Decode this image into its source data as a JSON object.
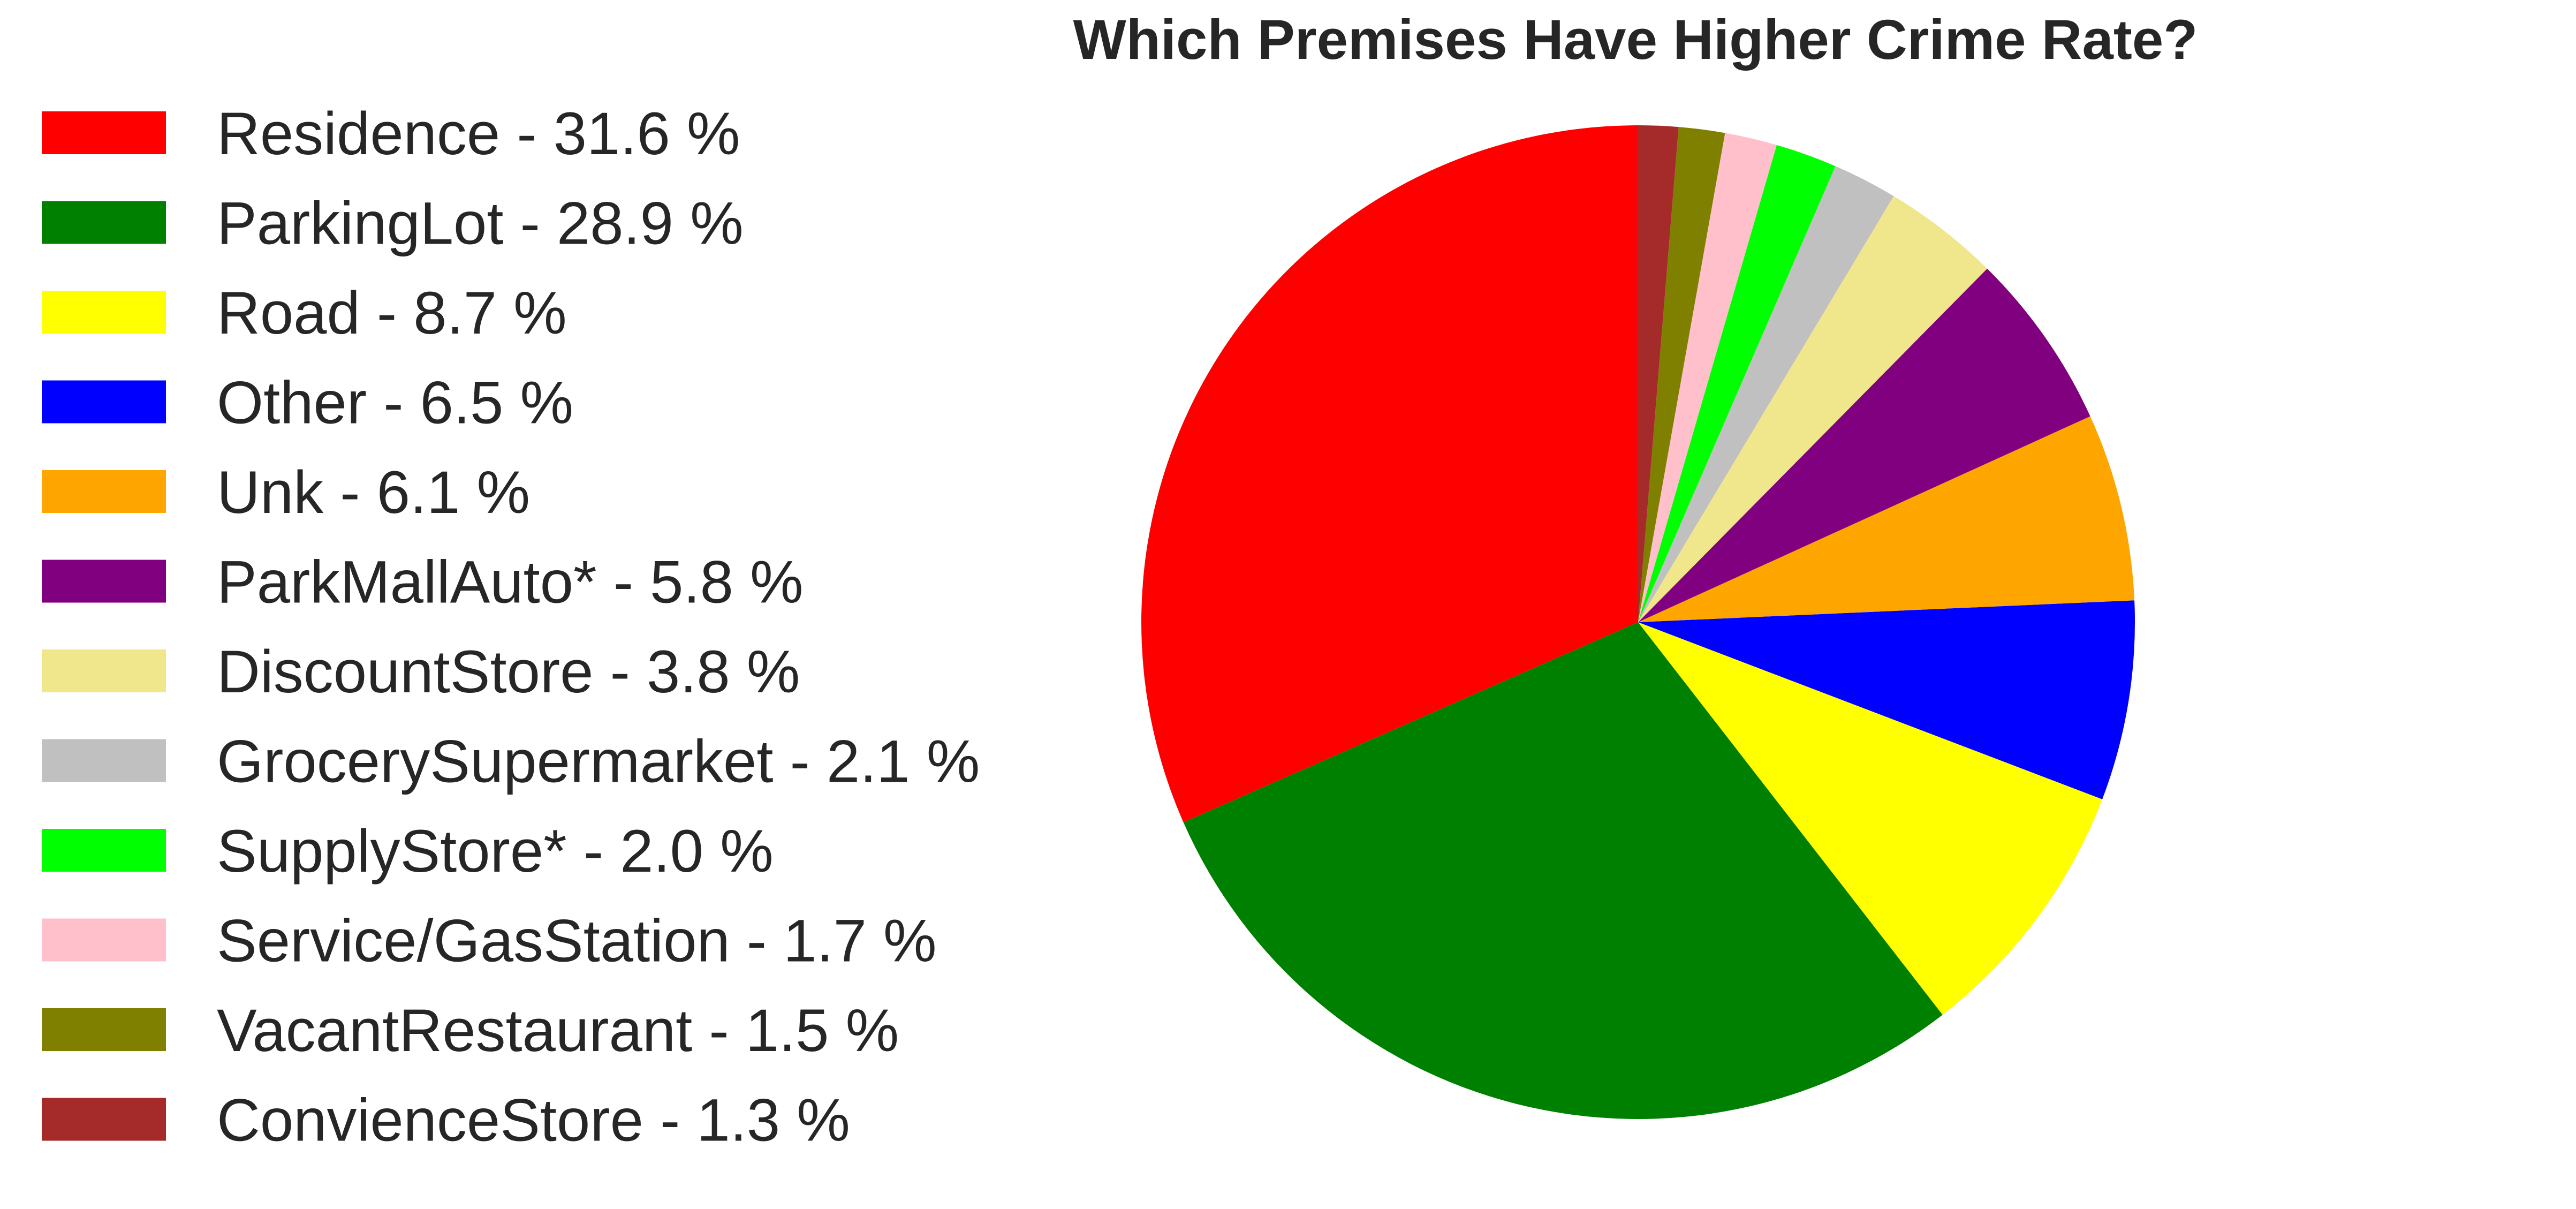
{
  "chart_data": {
    "type": "pie",
    "title": "Which Premises Have Higher Crime Rate?",
    "legend_position": "left",
    "start_angle_deg": 90,
    "direction": "counterclockwise",
    "slices": [
      {
        "label": "Residence",
        "value": 31.6,
        "legend_text": "Residence - 31.6 %",
        "color": "#ff0000"
      },
      {
        "label": "ParkingLot",
        "value": 28.9,
        "legend_text": "ParkingLot - 28.9 %",
        "color": "#008000"
      },
      {
        "label": "Road",
        "value": 8.7,
        "legend_text": "Road - 8.7 %",
        "color": "#ffff00"
      },
      {
        "label": "Other",
        "value": 6.5,
        "legend_text": "Other - 6.5 %",
        "color": "#0000ff"
      },
      {
        "label": "Unk",
        "value": 6.1,
        "legend_text": "Unk - 6.1 %",
        "color": "#ffa500"
      },
      {
        "label": "ParkMallAuto*",
        "value": 5.8,
        "legend_text": "ParkMallAuto* - 5.8 %",
        "color": "#800080"
      },
      {
        "label": "DiscountStore",
        "value": 3.8,
        "legend_text": "DiscountStore - 3.8 %",
        "color": "#f0e68c"
      },
      {
        "label": "GrocerySupermarket",
        "value": 2.1,
        "legend_text": "GrocerySupermarket - 2.1 %",
        "color": "#c0c0c0"
      },
      {
        "label": "SupplyStore*",
        "value": 2.0,
        "legend_text": "SupplyStore* - 2.0 %",
        "color": "#00ff00"
      },
      {
        "label": "Service/GasStation",
        "value": 1.7,
        "legend_text": "Service/GasStation - 1.7 %",
        "color": "#ffc0cb"
      },
      {
        "label": "VacantRestaurant",
        "value": 1.5,
        "legend_text": "VacantRestaurant - 1.5 %",
        "color": "#808000"
      },
      {
        "label": "ConvienceStore",
        "value": 1.3,
        "legend_text": "ConvienceStore - 1.3 %",
        "color": "#a52a2a"
      }
    ]
  }
}
